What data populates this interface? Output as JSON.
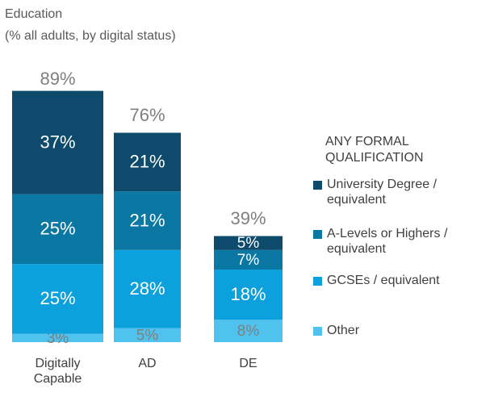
{
  "chart_data": {
    "type": "stacked_bar",
    "title": "Education",
    "subtitle": "(% all adults, by digital status)",
    "legend_title": "ANY FORMAL QUALIFICATION",
    "legend": "right",
    "categories": [
      "Digitally Capable",
      "AD",
      "DE"
    ],
    "ylim": [
      0,
      100
    ],
    "totals": [
      89,
      76,
      39
    ],
    "total_labels": [
      "89%",
      "76%",
      "39%"
    ],
    "series": [
      {
        "name": "Other",
        "color": "#4fc3ee",
        "values": [
          3,
          5,
          8
        ],
        "value_labels": [
          "3%",
          "5%",
          "8%"
        ]
      },
      {
        "name": "GCSEs / equivalent",
        "color": "#0ca0dc",
        "values": [
          25,
          28,
          18
        ],
        "value_labels": [
          "25%",
          "28%",
          "18%"
        ]
      },
      {
        "name": "A-Levels or Highers / equivalent",
        "color": "#0b77a3",
        "values": [
          25,
          21,
          7
        ],
        "value_labels": [
          "25%",
          "21%",
          "7%"
        ]
      },
      {
        "name": "University Degree / equivalent",
        "color": "#0d4a6b",
        "values": [
          37,
          21,
          5
        ],
        "value_labels": [
          "37%",
          "21%",
          "5%"
        ]
      }
    ]
  }
}
